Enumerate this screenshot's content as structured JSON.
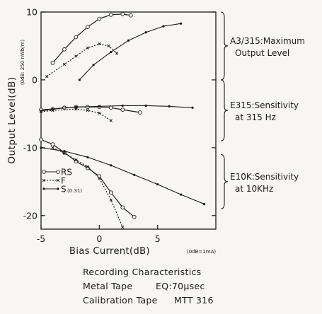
{
  "chart_data": {
    "type": "line",
    "xlabel": "Bias Current(dB)",
    "xlabel_unit": "(0dB=1mA)",
    "ylabel": "Output Level(dB)",
    "ylabel_unit": "(0dB: 250 nWb/m)",
    "xlim": [
      -5,
      10
    ],
    "ylim": [
      -22,
      10
    ],
    "x_ticks": [
      -5,
      0,
      5
    ],
    "y_ticks": [
      10,
      0,
      -10,
      -20
    ],
    "grid": false,
    "legend": {
      "placement": "lower-left",
      "entries": [
        {
          "label": "RS",
          "marker": "circle"
        },
        {
          "label": "F",
          "marker": "x"
        },
        {
          "label": "S",
          "suffix": "(0.31)",
          "marker": "dot"
        }
      ]
    },
    "annotations": [
      {
        "lines": [
          "A3/315:Maximum",
          "Output Level"
        ],
        "y_range": [
          0,
          10
        ]
      },
      {
        "lines": [
          "E315:Sensitivity",
          "at 315 Hz"
        ],
        "y_range": [
          -9,
          0
        ]
      },
      {
        "lines": [
          "E10K:Sensitivity",
          "at 10KHz"
        ],
        "y_range": [
          -19,
          -11
        ]
      }
    ],
    "groups": [
      {
        "name": "A3/315",
        "series": [
          {
            "name": "RS",
            "x": [
              -4,
              -3,
              -2,
              -1,
              0,
              1,
              2,
              2.7
            ],
            "y": [
              2.5,
              4.5,
              6.3,
              7.8,
              9.0,
              9.6,
              9.7,
              9.5
            ]
          },
          {
            "name": "F",
            "x": [
              -4.5,
              -3,
              -2,
              -1,
              0,
              0.8,
              1.5
            ],
            "y": [
              0.5,
              2.3,
              3.5,
              4.7,
              5.3,
              5.0,
              3.9
            ]
          },
          {
            "name": "S(0.31)",
            "x": [
              -1.7,
              -0.5,
              1,
              2.5,
              4,
              5.5,
              7
            ],
            "y": [
              0.0,
              2.2,
              4.1,
              5.8,
              7.0,
              7.9,
              8.3
            ]
          }
        ]
      },
      {
        "name": "E315",
        "series": [
          {
            "name": "RS",
            "x": [
              -5,
              -4,
              -3,
              -2,
              -1,
              0,
              1,
              2,
              3.5
            ],
            "y": [
              -4.4,
              -4.3,
              -4.1,
              -4.0,
              -4.0,
              -4.0,
              -4.1,
              -4.4,
              -4.8
            ]
          },
          {
            "name": "S(0.31)",
            "x": [
              -5,
              -4,
              -2,
              0,
              2,
              4,
              6,
              8
            ],
            "y": [
              -4.6,
              -4.3,
              -4.0,
              -3.9,
              -3.8,
              -3.8,
              -3.9,
              -4.1
            ]
          },
          {
            "name": "F",
            "x": [
              -5,
              -4,
              -2,
              -1,
              0,
              1
            ],
            "y": [
              -4.7,
              -4.5,
              -4.3,
              -4.5,
              -4.9,
              -6.0
            ]
          }
        ]
      },
      {
        "name": "E10K",
        "series": [
          {
            "name": "RS",
            "x": [
              -5,
              -4,
              -3,
              -2,
              -1,
              0,
              1,
              2,
              3
            ],
            "y": [
              -8.8,
              -9.5,
              -10.7,
              -12.0,
              -13.0,
              -14.2,
              -16.6,
              -18.8,
              -20.2
            ]
          },
          {
            "name": "F",
            "x": [
              -4,
              -3,
              -2,
              -1,
              0,
              1,
              2
            ],
            "y": [
              -10.0,
              -10.8,
              -11.8,
              -12.8,
              -14.5,
              -17.7,
              -21.7
            ]
          },
          {
            "name": "S(0.31)",
            "x": [
              -5,
              -3,
              -1,
              1,
              3,
              5,
              7,
              9
            ],
            "y": [
              -10.0,
              -10.5,
              -11.4,
              -12.6,
              -14.0,
              -15.4,
              -16.9,
              -18.3
            ]
          }
        ]
      }
    ]
  },
  "caption": {
    "line1": "Recording Characteristics",
    "line2_label": "Metal Tape",
    "line2_eq": "EQ:70μsec",
    "line3_label": "Calibration Tape",
    "line3_value": "MTT 316"
  }
}
